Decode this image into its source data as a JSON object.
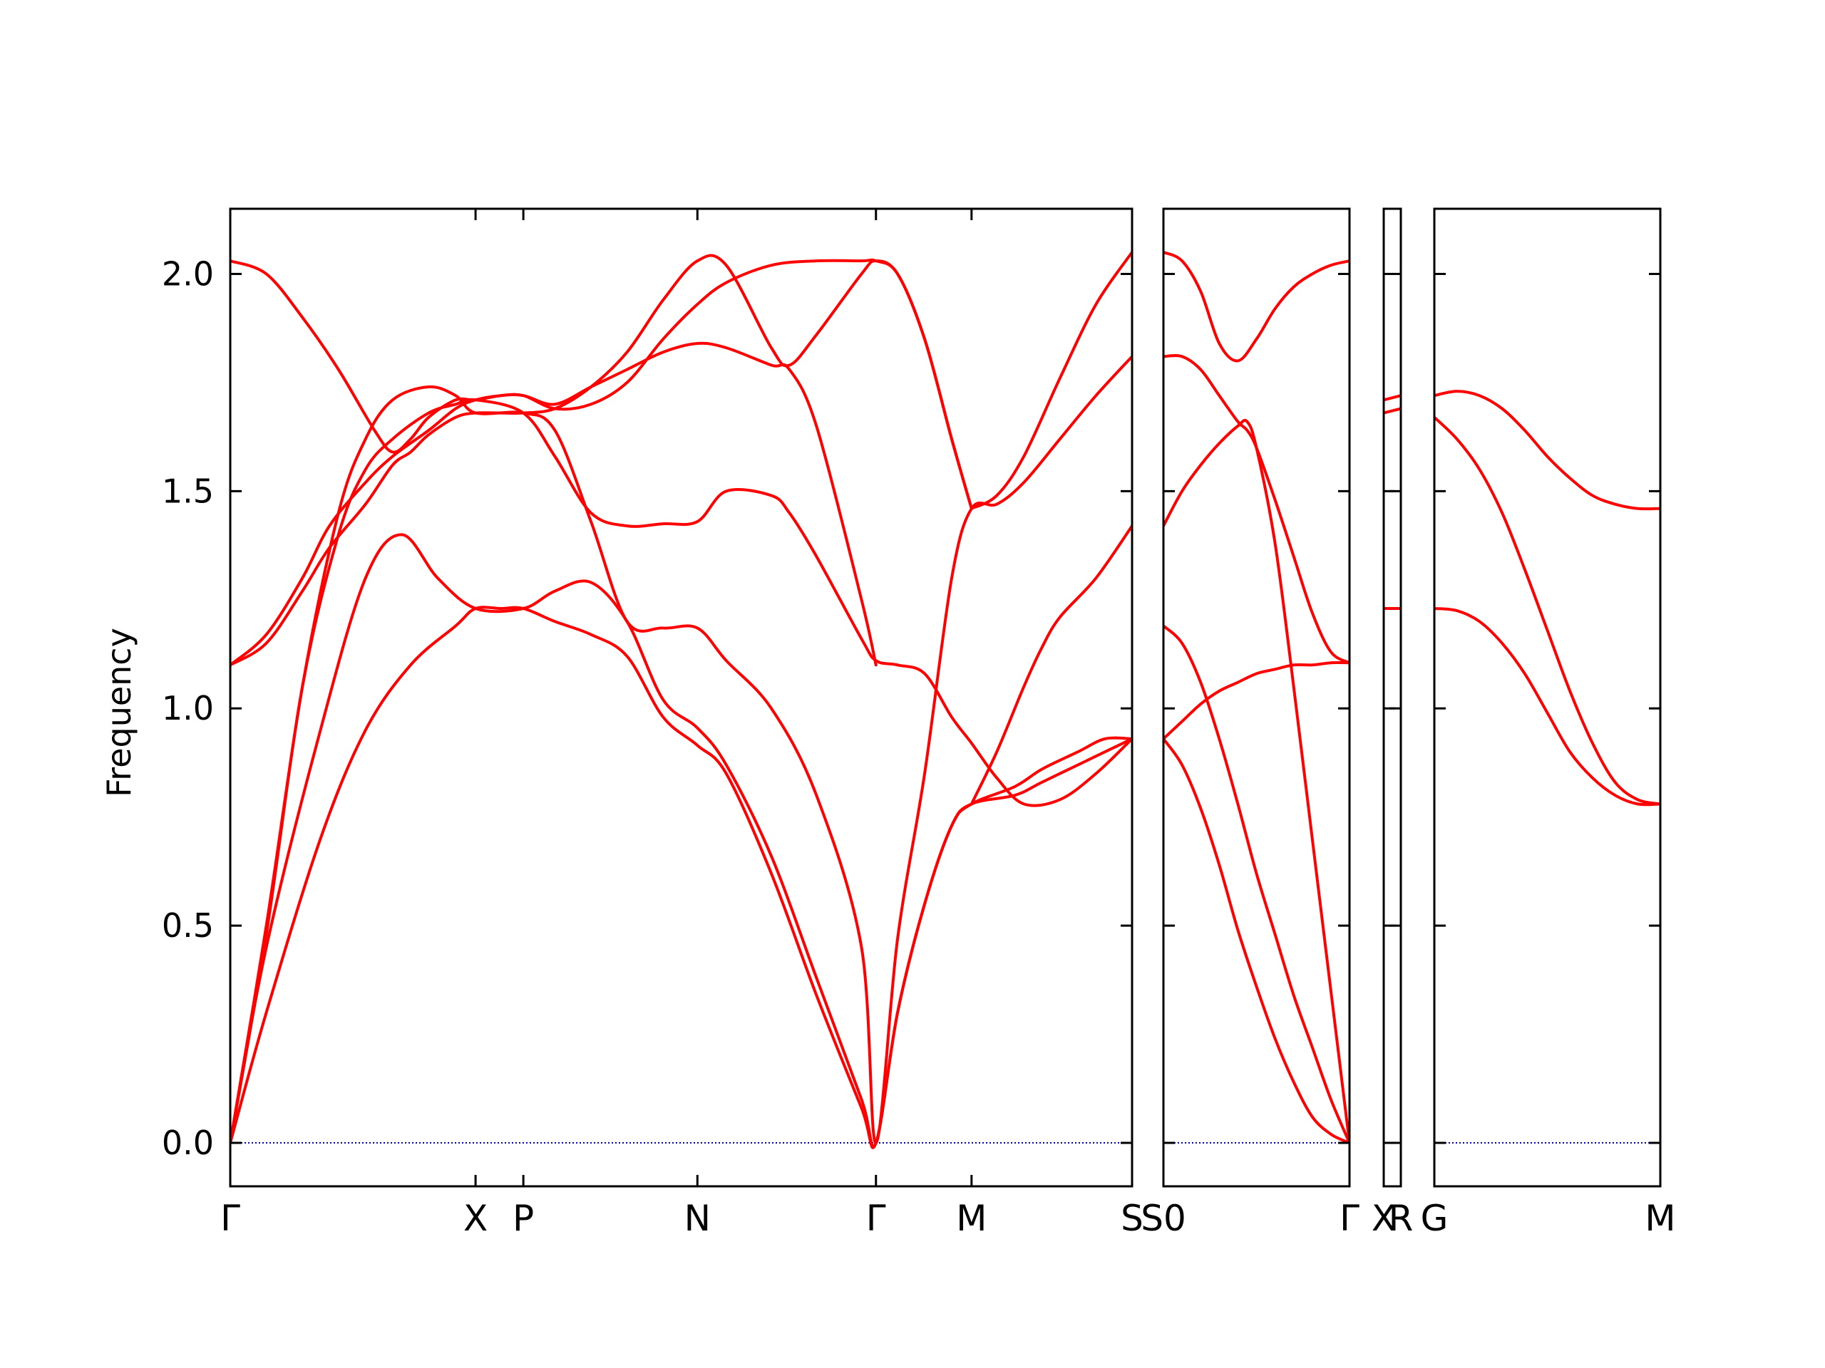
{
  "chart_data": {
    "type": "line",
    "title": "",
    "ylabel": "Frequency",
    "ylim": [
      -0.1,
      2.15
    ],
    "yticks": [
      0.0,
      0.5,
      1.0,
      1.5,
      2.0
    ],
    "ytick_labels": [
      "0.0",
      "0.5",
      "1.0",
      "1.5",
      "2.0"
    ],
    "band_color": "#ff0000",
    "zero_line_color": "#0000cc",
    "grid": false,
    "ticks_direction": "in",
    "panels": [
      {
        "id": "p1",
        "xlim": [
          0,
          1
        ],
        "labels": [
          {
            "x": 0.0,
            "text": "Γ"
          },
          {
            "x": 0.272,
            "text": "X"
          },
          {
            "x": 0.325,
            "text": "P"
          },
          {
            "x": 0.518,
            "text": "N"
          },
          {
            "x": 0.716,
            "text": "Γ"
          },
          {
            "x": 0.822,
            "text": "M"
          },
          {
            "x": 1.0,
            "text": "S"
          }
        ],
        "bands": [
          {
            "name": "b1",
            "x": [
              0,
              0.04,
              0.1,
              0.15,
              0.2,
              0.25,
              0.272,
              0.3,
              0.325,
              0.36,
              0.4,
              0.44,
              0.48,
              0.518,
              0.55,
              0.6,
              0.65,
              0.7,
              0.716,
              0.74,
              0.77,
              0.8,
              0.822,
              0.87,
              0.9,
              0.94,
              0.97,
              1.0
            ],
            "y": [
              0,
              0.3,
              0.7,
              0.95,
              1.1,
              1.19,
              1.23,
              1.23,
              1.23,
              1.2,
              1.17,
              1.12,
              0.98,
              0.915,
              0.85,
              0.62,
              0.34,
              0.08,
              0,
              0.3,
              0.55,
              0.73,
              0.78,
              0.8,
              0.83,
              0.87,
              0.9,
              0.93
            ]
          },
          {
            "name": "b2",
            "x": [
              0,
              0.04,
              0.1,
              0.15,
              0.19,
              0.23,
              0.272,
              0.325,
              0.36,
              0.4,
              0.44,
              0.48,
              0.518,
              0.55,
              0.6,
              0.65,
              0.7,
              0.716,
              0.74,
              0.77,
              0.8,
              0.822,
              0.87,
              0.9,
              0.94,
              0.97,
              1.0
            ],
            "y": [
              0,
              0.45,
              0.95,
              1.3,
              1.4,
              1.3,
              1.23,
              1.23,
              1.27,
              1.29,
              1.2,
              1.02,
              0.955,
              0.87,
              0.66,
              0.38,
              0.1,
              0,
              0.3,
              0.55,
              0.73,
              0.78,
              0.82,
              0.86,
              0.9,
              0.93,
              0.93
            ]
          },
          {
            "name": "b3",
            "x": [
              0,
              0.04,
              0.08,
              0.12,
              0.15,
              0.18,
              0.22,
              0.25,
              0.272,
              0.325,
              0.36,
              0.4,
              0.44,
              0.48,
              0.518,
              0.55,
              0.6,
              0.65,
              0.7,
              0.716,
              0.74,
              0.77,
              0.8,
              0.822,
              0.85,
              0.88,
              0.92,
              0.96,
              1.0
            ],
            "y": [
              0,
              0.5,
              1.05,
              1.45,
              1.62,
              1.71,
              1.74,
              1.72,
              1.68,
              1.68,
              1.64,
              1.43,
              1.2,
              1.185,
              1.185,
              1.11,
              1.0,
              0.8,
              0.45,
              0,
              0.47,
              0.85,
              1.3,
              1.46,
              1.47,
              1.52,
              1.62,
              1.72,
              1.81
            ]
          },
          {
            "name": "b4",
            "x": [
              0,
              0.04,
              0.08,
              0.12,
              0.15,
              0.18,
              0.22,
              0.25,
              0.272,
              0.325,
              0.36,
              0.4,
              0.44,
              0.48,
              0.518,
              0.55,
              0.6,
              0.62,
              0.65,
              0.7,
              0.716,
              0.74,
              0.77,
              0.8,
              0.822,
              0.85,
              0.88,
              0.92,
              0.96,
              1.0
            ],
            "y": [
              0,
              0.48,
              1.05,
              1.4,
              1.55,
              1.62,
              1.68,
              1.7,
              1.71,
              1.68,
              1.58,
              1.45,
              1.42,
              1.425,
              1.43,
              1.5,
              1.49,
              1.45,
              1.35,
              1.16,
              1.11,
              1.1,
              1.08,
              0.98,
              0.92,
              0.84,
              0.78,
              0.79,
              0.85,
              0.93
            ]
          },
          {
            "name": "b5",
            "x": [
              0,
              0.04,
              0.08,
              0.11,
              0.15,
              0.18,
              0.22,
              0.25,
              0.272,
              0.3,
              0.325,
              0.36,
              0.4,
              0.44,
              0.48,
              0.518,
              0.55,
              0.6,
              0.62,
              0.65,
              0.7,
              0.716
            ],
            "y": [
              1.1,
              1.17,
              1.3,
              1.42,
              1.52,
              1.58,
              1.64,
              1.69,
              1.71,
              1.72,
              1.72,
              1.7,
              1.74,
              1.78,
              1.82,
              1.84,
              1.83,
              1.79,
              1.78,
              1.65,
              1.25,
              1.1
            ]
          },
          {
            "name": "b6",
            "x": [
              0,
              0.04,
              0.08,
              0.11,
              0.15,
              0.18,
              0.2,
              0.22,
              0.25,
              0.272,
              0.3,
              0.325,
              0.36,
              0.4,
              0.44,
              0.48,
              0.518,
              0.55,
              0.6,
              0.62,
              0.65,
              0.7,
              0.716,
              0.74,
              0.77,
              0.8,
              0.822
            ],
            "y": [
              1.1,
              1.15,
              1.27,
              1.37,
              1.47,
              1.56,
              1.59,
              1.63,
              1.67,
              1.68,
              1.68,
              1.68,
              1.69,
              1.74,
              1.82,
              1.94,
              2.03,
              2.02,
              1.83,
              1.79,
              1.86,
              2.0,
              2.03,
              2.0,
              1.85,
              1.62,
              1.46
            ]
          },
          {
            "name": "b7",
            "x": [
              0,
              0.04,
              0.08,
              0.12,
              0.16,
              0.18,
              0.2,
              0.22,
              0.25,
              0.272,
              0.3,
              0.325,
              0.36,
              0.4,
              0.44,
              0.48,
              0.518,
              0.55,
              0.6,
              0.65,
              0.7,
              0.716,
              0.74,
              0.77,
              0.8,
              0.822
            ],
            "y": [
              2.03,
              2.0,
              1.9,
              1.78,
              1.64,
              1.59,
              1.62,
              1.67,
              1.71,
              1.71,
              1.72,
              1.72,
              1.69,
              1.7,
              1.75,
              1.85,
              1.93,
              1.98,
              2.02,
              2.03,
              2.03,
              2.03,
              2.0,
              1.85,
              1.62,
              1.46
            ]
          },
          {
            "name": "b8",
            "x": [
              0.822,
              0.85,
              0.88,
              0.9,
              0.92,
              0.96,
              1.0
            ],
            "y": [
              0.78,
              0.9,
              1.05,
              1.14,
              1.21,
              1.3,
              1.42
            ]
          },
          {
            "name": "b9",
            "x": [
              0.822,
              0.85,
              0.88,
              0.92,
              0.96,
              1.0
            ],
            "y": [
              1.46,
              1.49,
              1.58,
              1.76,
              1.93,
              2.05
            ]
          }
        ]
      },
      {
        "id": "p2",
        "xlim": [
          0,
          1
        ],
        "labels": [
          {
            "x": 0.0,
            "text": "S0"
          },
          {
            "x": 1.0,
            "text": "Γ"
          }
        ],
        "bands": [
          {
            "name": "c1",
            "x": [
              0,
              0.1,
              0.2,
              0.3,
              0.4,
              0.5,
              0.6,
              0.7,
              0.8,
              0.9,
              1.0
            ],
            "y": [
              0.93,
              0.87,
              0.77,
              0.64,
              0.49,
              0.36,
              0.24,
              0.14,
              0.06,
              0.02,
              0
            ]
          },
          {
            "name": "c2",
            "x": [
              0,
              0.1,
              0.2,
              0.3,
              0.4,
              0.5,
              0.6,
              0.7,
              0.8,
              0.9,
              1.0
            ],
            "y": [
              1.19,
              1.15,
              1.06,
              0.93,
              0.78,
              0.62,
              0.48,
              0.34,
              0.22,
              0.1,
              0
            ]
          },
          {
            "name": "c3",
            "x": [
              0,
              0.1,
              0.2,
              0.3,
              0.4,
              0.5,
              0.6,
              0.7,
              0.8,
              0.9,
              1.0
            ],
            "y": [
              0.93,
              0.97,
              1.01,
              1.04,
              1.06,
              1.08,
              1.09,
              1.1,
              1.1,
              1.105,
              1.105
            ]
          },
          {
            "name": "c4",
            "x": [
              0,
              0.1,
              0.2,
              0.3,
              0.4,
              0.45,
              0.5,
              0.6,
              0.7,
              0.8,
              0.9,
              1.0
            ],
            "y": [
              1.42,
              1.5,
              1.56,
              1.61,
              1.65,
              1.66,
              1.6,
              1.38,
              1.05,
              0.7,
              0.35,
              0
            ]
          },
          {
            "name": "c5",
            "x": [
              0,
              0.1,
              0.2,
              0.3,
              0.4,
              0.45,
              0.5,
              0.6,
              0.7,
              0.8,
              0.9,
              1.0
            ],
            "y": [
              1.81,
              1.81,
              1.78,
              1.72,
              1.66,
              1.64,
              1.6,
              1.48,
              1.35,
              1.22,
              1.13,
              1.105
            ]
          },
          {
            "name": "c6",
            "x": [
              0,
              0.1,
              0.2,
              0.3,
              0.4,
              0.5,
              0.6,
              0.7,
              0.8,
              0.9,
              1.0
            ],
            "y": [
              2.05,
              2.03,
              1.96,
              1.84,
              1.8,
              1.85,
              1.92,
              1.97,
              2.0,
              2.02,
              2.03
            ]
          }
        ]
      },
      {
        "id": "p3",
        "xlim": [
          0,
          1
        ],
        "labels": [
          {
            "x": 0.0,
            "text": "X"
          },
          {
            "x": 1.0,
            "text": "R"
          }
        ],
        "bands": [
          {
            "name": "d1",
            "x": [
              0,
              1
            ],
            "y": [
              1.23,
              1.23
            ]
          },
          {
            "name": "d2",
            "x": [
              0,
              1
            ],
            "y": [
              1.68,
              1.69
            ]
          },
          {
            "name": "d3",
            "x": [
              0,
              1
            ],
            "y": [
              1.71,
              1.72
            ]
          }
        ]
      },
      {
        "id": "p4",
        "xlim": [
          0,
          1
        ],
        "labels": [
          {
            "x": 0.0,
            "text": "G"
          },
          {
            "x": 1.0,
            "text": "M"
          }
        ],
        "bands": [
          {
            "name": "e1",
            "x": [
              0,
              0.1,
              0.2,
              0.3,
              0.4,
              0.5,
              0.6,
              0.7,
              0.8,
              0.9,
              1.0
            ],
            "y": [
              1.23,
              1.225,
              1.2,
              1.15,
              1.08,
              0.99,
              0.9,
              0.84,
              0.8,
              0.78,
              0.78
            ]
          },
          {
            "name": "e2",
            "x": [
              0,
              0.1,
              0.2,
              0.3,
              0.4,
              0.5,
              0.6,
              0.7,
              0.8,
              0.9,
              1.0
            ],
            "y": [
              1.67,
              1.62,
              1.55,
              1.45,
              1.32,
              1.18,
              1.04,
              0.92,
              0.83,
              0.79,
              0.78
            ]
          },
          {
            "name": "e3",
            "x": [
              0,
              0.1,
              0.2,
              0.3,
              0.4,
              0.5,
              0.6,
              0.7,
              0.8,
              0.9,
              1.0
            ],
            "y": [
              1.72,
              1.73,
              1.72,
              1.69,
              1.64,
              1.58,
              1.53,
              1.49,
              1.47,
              1.46,
              1.46
            ]
          }
        ]
      }
    ]
  }
}
